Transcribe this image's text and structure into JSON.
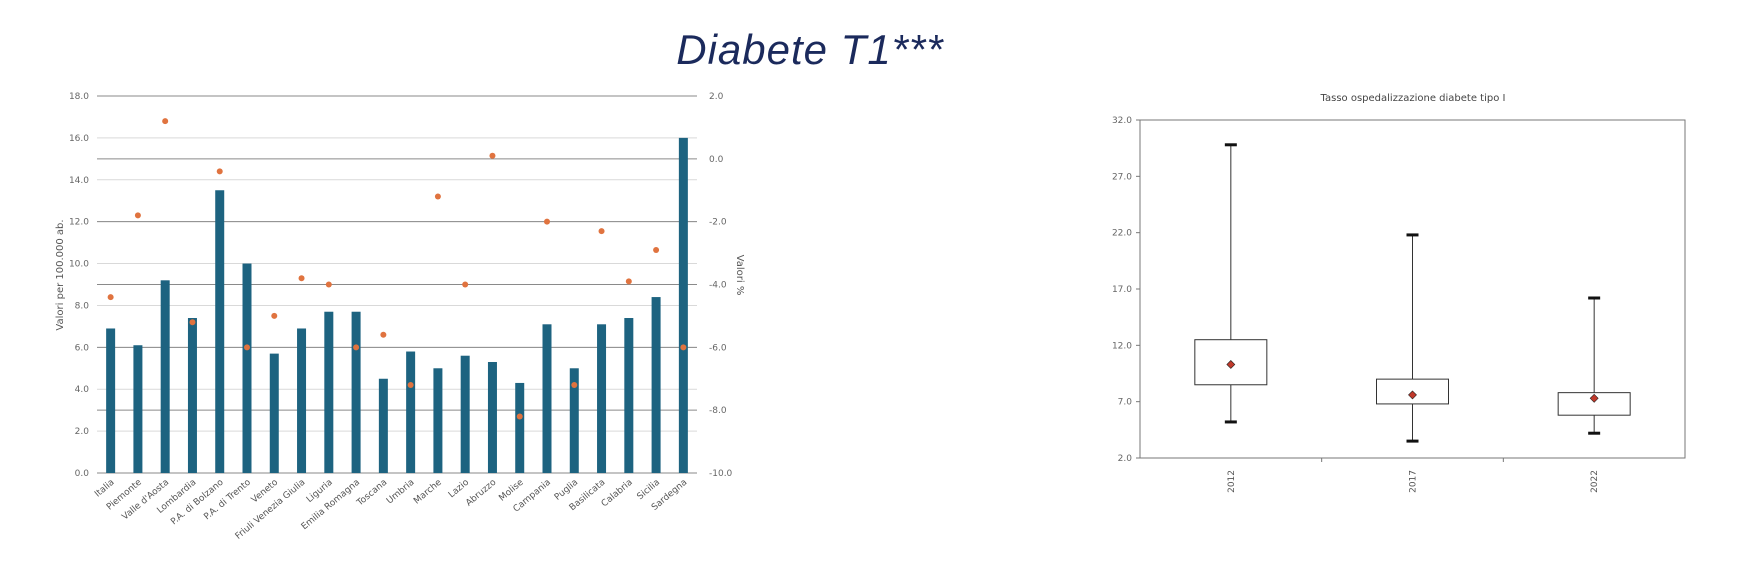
{
  "page": {
    "title": "Diabete T1***"
  },
  "chart_data": [
    {
      "type": "bar",
      "title": "",
      "categories": [
        "Italia",
        "Piemonte",
        "Valle d'Aosta",
        "Lombardia",
        "P.A. di Bolzano",
        "P.A. di Trento",
        "Veneto",
        "Friuli Venezia Giulia",
        "Liguria",
        "Emilia Romagna",
        "Toscana",
        "Umbria",
        "Marche",
        "Lazio",
        "Abruzzo",
        "Molise",
        "Campania",
        "Puglia",
        "Basilicata",
        "Calabria",
        "Sicilia",
        "Sardegna"
      ],
      "ylabel": "Valori per 100.000 ab.",
      "ylim": [
        0,
        18
      ],
      "yticks": [
        "0.0",
        "2.0",
        "4.0",
        "6.0",
        "8.0",
        "10.0",
        "12.0",
        "14.0",
        "16.0",
        "18.0"
      ],
      "y2label": "Valori %",
      "y2lim": [
        -10,
        2
      ],
      "y2ticks": [
        "-10.0",
        "-8.0",
        "-6.0",
        "-4.0",
        "-2.0",
        "0.0",
        "2.0"
      ],
      "grid": true,
      "series": [
        {
          "axis": "left",
          "kind": "bar",
          "color": "#1d6380",
          "values": [
            6.9,
            6.1,
            9.2,
            7.4,
            13.5,
            10.0,
            5.7,
            6.9,
            7.7,
            7.7,
            4.5,
            5.8,
            5.0,
            5.6,
            5.3,
            4.3,
            7.1,
            5.0,
            7.1,
            7.4,
            8.4,
            16.0
          ]
        },
        {
          "axis": "right",
          "kind": "scatter",
          "color": "#e0733f",
          "values": [
            -4.4,
            -1.8,
            1.2,
            -5.2,
            -0.4,
            -6.0,
            -5.0,
            -3.8,
            -4.0,
            -6.0,
            -5.6,
            -7.2,
            -1.2,
            -4.0,
            0.1,
            -8.2,
            -2.0,
            -7.2,
            -2.3,
            -3.9,
            -2.9,
            -6.0
          ]
        }
      ]
    },
    {
      "type": "box",
      "title": "Tasso ospedalizzazione diabete tipo I",
      "categories": [
        "2012",
        "2017",
        "2022"
      ],
      "ylim": [
        2,
        32
      ],
      "yticks": [
        "2.0",
        "7.0",
        "12.0",
        "17.0",
        "22.0",
        "27.0",
        "32.0"
      ],
      "grid": false,
      "boxes": [
        {
          "min": 5.2,
          "q1": 8.5,
          "q3": 12.5,
          "max": 29.8,
          "mean": 10.3
        },
        {
          "min": 3.5,
          "q1": 6.8,
          "q3": 9.0,
          "max": 21.8,
          "mean": 7.6
        },
        {
          "min": 4.2,
          "q1": 5.8,
          "q3": 7.8,
          "max": 16.2,
          "mean": 7.3
        }
      ],
      "colors": {
        "mean_marker": "#c0392b",
        "box_fill": "#ffffff",
        "lines": "#333333"
      }
    }
  ]
}
